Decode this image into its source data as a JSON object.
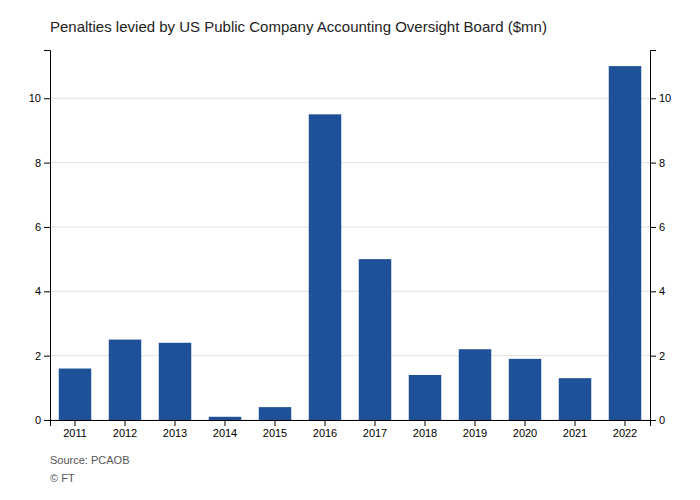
{
  "chart_data": {
    "type": "bar",
    "title": "Penalties levied by US Public Company Accounting Oversight Board ($mn)",
    "categories": [
      "2011",
      "2012",
      "2013",
      "2014",
      "2015",
      "2016",
      "2017",
      "2018",
      "2019",
      "2020",
      "2021",
      "2022"
    ],
    "values": [
      1.6,
      2.5,
      2.4,
      0.1,
      0.4,
      9.5,
      5.0,
      1.4,
      2.2,
      1.9,
      1.3,
      11.0
    ],
    "color": "#1f5199",
    "ylim": [
      0,
      11.5
    ],
    "yticks": [
      0,
      2,
      4,
      6,
      8,
      10
    ],
    "y2lim": [
      0,
      11.5
    ],
    "y2ticks": [
      0,
      2,
      4,
      6,
      8,
      10
    ],
    "grid": true,
    "annotations": [
      "Source: PCAOB",
      "© FT"
    ]
  }
}
